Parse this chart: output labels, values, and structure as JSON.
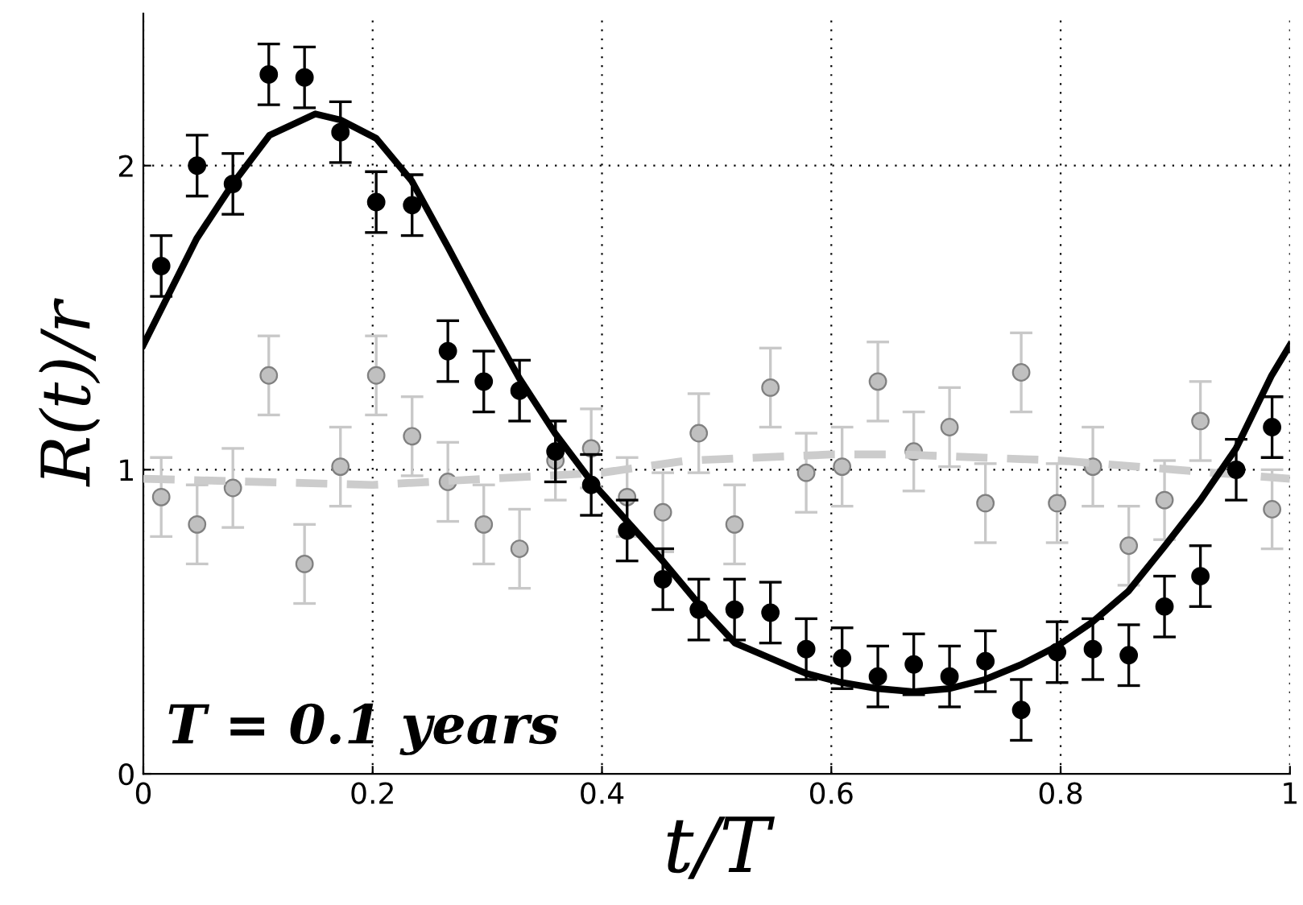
{
  "chart_data": {
    "type": "scatter",
    "xlabel": "t/T",
    "ylabel": "R(t)/r",
    "annotations": [
      "T = 0.1 years"
    ],
    "xlim": [
      0,
      1
    ],
    "ylim": [
      0,
      2.5
    ],
    "xticks": [
      0,
      0.2,
      0.4,
      0.6,
      0.8,
      1
    ],
    "yticks": [
      0,
      1,
      2
    ],
    "grid": true,
    "legend": false,
    "series": [
      {
        "marker": "circle",
        "color": "#c0c0c0",
        "x": [
          0.0156,
          0.0469,
          0.0781,
          0.1094,
          0.1406,
          0.1719,
          0.2031,
          0.2344,
          0.2656,
          0.2969,
          0.3281,
          0.3594,
          0.3906,
          0.4219,
          0.4531,
          0.4844,
          0.5156,
          0.5469,
          0.5781,
          0.6094,
          0.6406,
          0.6719,
          0.7031,
          0.7344,
          0.7656,
          0.7969,
          0.8281,
          0.8594,
          0.8906,
          0.9219,
          0.9531,
          0.9844
        ],
        "values": [
          0.91,
          0.82,
          0.94,
          1.31,
          0.69,
          1.01,
          1.31,
          1.11,
          0.96,
          0.82,
          0.74,
          1.03,
          1.07,
          0.91,
          0.86,
          1.12,
          0.82,
          1.27,
          0.99,
          1.01,
          1.29,
          1.06,
          1.14,
          0.89,
          1.32,
          0.89,
          1.01,
          0.75,
          0.9,
          1.16,
          null,
          0.87
        ],
        "errors": [
          0.13,
          0.13,
          0.13,
          0.13,
          0.13,
          0.13,
          0.13,
          0.13,
          0.13,
          0.13,
          0.13,
          0.13,
          0.13,
          0.13,
          0.13,
          0.13,
          0.13,
          0.13,
          0.13,
          0.13,
          0.13,
          0.13,
          0.13,
          0.13,
          0.13,
          0.13,
          0.13,
          0.13,
          0.13,
          0.13,
          null,
          0.13
        ]
      },
      {
        "type": "line",
        "marker": "none",
        "color": "#cccccc",
        "line_style": "dashed",
        "x": [
          0,
          0.2,
          0.4,
          0.474,
          0.6,
          0.66,
          0.8,
          0.9,
          1
        ],
        "values": [
          0.97,
          0.95,
          0.99,
          1.03,
          1.05,
          1.05,
          1.03,
          1.0,
          0.97
        ]
      },
      {
        "type": "line",
        "marker": "none",
        "color": "#000000",
        "line_style": "solid",
        "x": [
          0,
          0.0465,
          0.078,
          0.11,
          0.15,
          0.172,
          0.203,
          0.234,
          0.266,
          0.297,
          0.328,
          0.359,
          0.391,
          0.422,
          0.453,
          0.484,
          0.516,
          0.547,
          0.578,
          0.609,
          0.641,
          0.672,
          0.703,
          0.734,
          0.766,
          0.797,
          0.828,
          0.859,
          0.891,
          0.922,
          0.953,
          0.984,
          1
        ],
        "values": [
          1.41,
          1.76,
          1.94,
          2.1,
          2.17,
          2.15,
          2.09,
          1.95,
          1.73,
          1.51,
          1.3,
          1.12,
          0.96,
          0.83,
          0.7,
          0.56,
          0.43,
          0.38,
          0.33,
          0.3,
          0.28,
          0.27,
          0.28,
          0.31,
          0.36,
          0.42,
          0.5,
          0.6,
          0.75,
          0.9,
          1.07,
          1.31,
          1.41
        ]
      },
      {
        "marker": "circle",
        "color": "#000000",
        "x": [
          0.0156,
          0.0469,
          0.0781,
          0.1094,
          0.1406,
          0.1719,
          0.2031,
          0.2344,
          0.2656,
          0.2969,
          0.3281,
          0.3594,
          0.3906,
          0.4219,
          0.4531,
          0.4844,
          0.5156,
          0.5469,
          0.5781,
          0.6094,
          0.6406,
          0.6719,
          0.7031,
          0.7344,
          0.7656,
          0.7969,
          0.8281,
          0.8594,
          0.8906,
          0.9219,
          0.9531,
          0.9844
        ],
        "values": [
          1.67,
          2.0,
          1.94,
          2.3,
          2.29,
          2.11,
          1.88,
          1.87,
          1.39,
          1.29,
          1.26,
          1.06,
          0.95,
          0.8,
          0.64,
          0.54,
          0.54,
          0.53,
          0.41,
          0.38,
          0.32,
          0.36,
          0.32,
          0.37,
          0.21,
          0.4,
          0.41,
          0.39,
          0.55,
          0.65,
          1.0,
          1.14
        ],
        "errors": [
          0.1,
          0.1,
          0.1,
          0.1,
          0.1,
          0.1,
          0.1,
          0.1,
          0.1,
          0.1,
          0.1,
          0.1,
          0.1,
          0.1,
          0.1,
          0.1,
          0.1,
          0.1,
          0.1,
          0.1,
          0.1,
          0.1,
          0.1,
          0.1,
          0.1,
          0.1,
          0.1,
          0.1,
          0.1,
          0.1,
          0.1,
          0.1
        ]
      }
    ]
  }
}
